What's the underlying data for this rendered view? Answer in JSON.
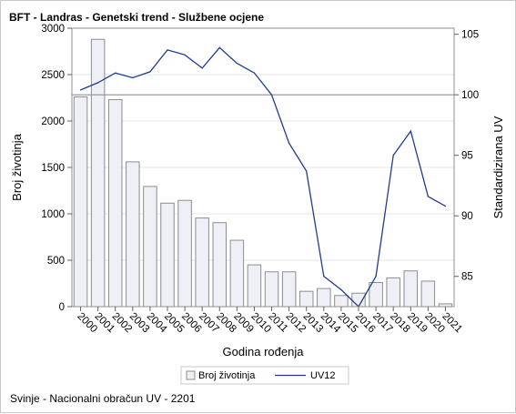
{
  "chart_data": {
    "type": "bar+line",
    "title": "BFT - Landras - Genetski trend - Službene ocjene",
    "xlabel": "Godina rođenja",
    "ylabel_left": "Broj životinja",
    "ylabel_right": "Standardizirana UV",
    "categories": [
      "2000",
      "2001",
      "2002",
      "2003",
      "2004",
      "2005",
      "2006",
      "2007",
      "2008",
      "2009",
      "2010",
      "2011",
      "2012",
      "2013",
      "2014",
      "2015",
      "2016",
      "2017",
      "2018",
      "2019",
      "2020",
      "2021"
    ],
    "bar_series": {
      "name": "Broj životinja",
      "values": [
        2260,
        2880,
        2230,
        1560,
        1295,
        1115,
        1145,
        955,
        905,
        715,
        450,
        375,
        375,
        165,
        195,
        120,
        145,
        260,
        310,
        385,
        275,
        30
      ],
      "color": "#eef0f5",
      "border": "#8c8c96"
    },
    "line_series": {
      "name": "UV12",
      "values": [
        100.4,
        101.0,
        101.8,
        101.4,
        101.9,
        103.7,
        103.3,
        102.2,
        103.9,
        102.6,
        101.8,
        100.0,
        96.0,
        93.7,
        85.0,
        83.9,
        82.5,
        85.0,
        95.0,
        97.0,
        91.6,
        90.8
      ],
      "color": "#1f3c8f"
    },
    "reference_line": {
      "axis": "right",
      "value": 100
    },
    "ylim_left": [
      0,
      3000
    ],
    "yticks_left": [
      "0",
      "500",
      "1000",
      "1500",
      "2000",
      "2500",
      "3000"
    ],
    "ylim_right": [
      82.5,
      105.5
    ],
    "yticks_right": [
      "85",
      "90",
      "95",
      "100",
      "105"
    ],
    "legend": {
      "position": "bottom",
      "items": [
        "Broj životinja",
        "UV12"
      ]
    },
    "footnote": "Svinje - Nacionalni obračun UV - 2201"
  }
}
